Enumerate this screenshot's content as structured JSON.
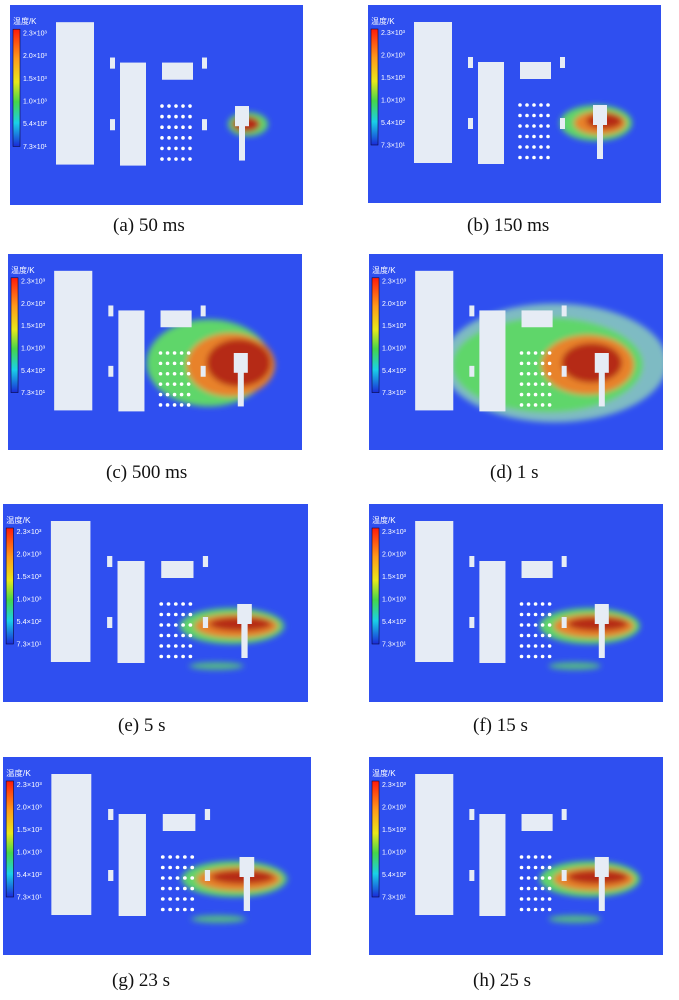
{
  "figure": {
    "colorbar": {
      "title": "温度/K",
      "ticks": [
        "2.3×10³",
        "2.0×10³",
        "1.5×10³",
        "1.0×10³",
        "5.4×10²",
        "7.3×10¹"
      ]
    },
    "colors": {
      "background": "#2f4ff0",
      "obstacle": "#e6ecf5",
      "hot": "#b52a12",
      "warm": "#e8822a",
      "mid": "#5fd66a",
      "cool": "#9fe8b0"
    },
    "panels": [
      {
        "id": "a",
        "caption": "(a) 50 ms",
        "fire": "tiny",
        "hole_color": "#ffffff"
      },
      {
        "id": "b",
        "caption": "(b) 150 ms",
        "fire": "small",
        "hole_color": "#ffffff"
      },
      {
        "id": "c",
        "caption": "(c) 500 ms",
        "fire": "large",
        "hole_color": "#ffffff"
      },
      {
        "id": "d",
        "caption": "(d) 1 s",
        "fire": "huge",
        "hole_color": "#ffffff"
      },
      {
        "id": "e",
        "caption": "(e) 5 s",
        "fire": "streak",
        "hole_color": "#ffffff"
      },
      {
        "id": "f",
        "caption": "(f) 15 s",
        "fire": "streak",
        "hole_color": "#ffffff"
      },
      {
        "id": "g",
        "caption": "(g) 23 s",
        "fire": "streak",
        "hole_color": "#ffffff"
      },
      {
        "id": "h",
        "caption": "(h) 25 s",
        "fire": "streak",
        "hole_color": "#ffffff"
      }
    ]
  }
}
